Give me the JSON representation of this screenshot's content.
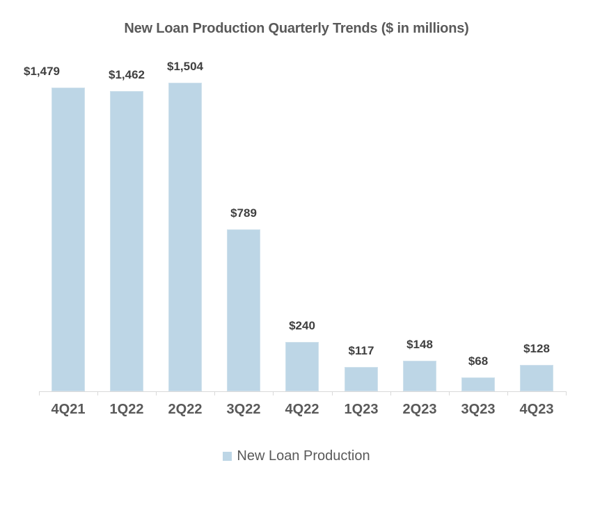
{
  "chart_data": {
    "type": "bar",
    "title": "New Loan Production Quarterly Trends ($ in millions)",
    "xlabel": "",
    "ylabel": "",
    "categories": [
      "4Q21",
      "1Q22",
      "2Q22",
      "3Q22",
      "4Q22",
      "1Q23",
      "2Q23",
      "3Q23",
      "4Q23"
    ],
    "series": [
      {
        "name": "New Loan Production",
        "color": "#bdd6e6",
        "values": [
          1479,
          1462,
          1504,
          789,
          240,
          117,
          148,
          68,
          128
        ],
        "labels": [
          "$1,479",
          "$1,462",
          "$1,504",
          "$789",
          "$240",
          "$117",
          "$148",
          "$68",
          "$128"
        ]
      }
    ],
    "ylim": [
      0,
      1600
    ],
    "grid": false,
    "legend_position": "bottom",
    "data_labels": true
  },
  "title": "New Loan Production Quarterly Trends ($ in millions)",
  "legend": {
    "label": "New Loan Production"
  }
}
